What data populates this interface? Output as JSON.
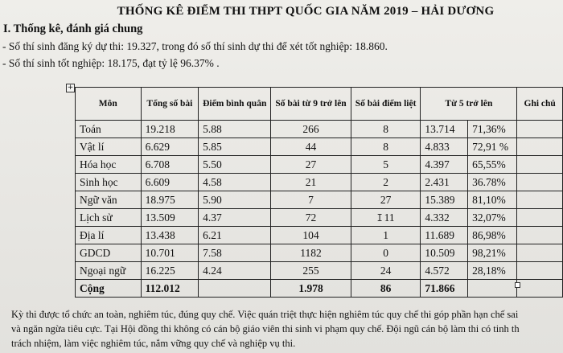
{
  "document": {
    "title": "THỐNG KÊ ĐIỂM THI THPT QUỐC GIA NĂM 2019 – HẢI DƯƠNG",
    "section_heading": "I. Thống kê, đánh giá chung",
    "bullet_1": "- Số thí sinh đăng ký dự thi: 19.327, trong đó số thí sinh dự thi để xét tốt nghiệp: 18.860.",
    "bullet_2": "- Số thí sinh tốt nghiệp: 18.175, đạt tỷ lệ 96.37% .",
    "paragraph_lines": [
      "Kỳ thi được tổ chức an toàn, nghiêm túc, đúng quy chế. Việc quán triệt thực hiện nghiêm túc quy chế thi góp phần hạn chế sai",
      "và ngăn ngừa tiêu cực. Tại Hội đồng thi không có cán bộ giáo viên thi sinh vi phạm quy chế. Đội ngũ cán bộ làm thi có tinh th",
      "trách nhiệm, làm việc nghiêm túc, nắm vững quy chế và nghiệp vụ thi."
    ]
  },
  "table": {
    "headers": {
      "subject": "Môn",
      "total": "Tổng số bài",
      "average": "Điểm bình quân",
      "nine_plus": "Số bài từ 9 trở lên",
      "fail": "Số bài điểm liệt",
      "five_plus": "Từ 5 trở lên",
      "note": "Ghi chú"
    },
    "rows": [
      {
        "subject": "Toán",
        "total": "19.218",
        "average": "5.88",
        "nine_plus": "266",
        "fail": "8",
        "five_count": "13.714",
        "five_pct": "71,36%",
        "note": ""
      },
      {
        "subject": "Vật lí",
        "total": "6.629",
        "average": "5.85",
        "nine_plus": "44",
        "fail": "8",
        "five_count": "4.833",
        "five_pct": "72,91 %",
        "note": ""
      },
      {
        "subject": "Hóa học",
        "total": "6.708",
        "average": "5.50",
        "nine_plus": "27",
        "fail": "5",
        "five_count": "4.397",
        "five_pct": "65,55%",
        "note": ""
      },
      {
        "subject": "Sinh học",
        "total": "6.609",
        "average": "4.58",
        "nine_plus": "21",
        "fail": "2",
        "five_count": "2.431",
        "five_pct": "36.78%",
        "note": ""
      },
      {
        "subject": "Ngữ văn",
        "total": "18.975",
        "average": "5.90",
        "nine_plus": "7",
        "fail": "27",
        "five_count": "15.389",
        "five_pct": "81,10%",
        "note": ""
      },
      {
        "subject": "Lịch sử",
        "total": "13.509",
        "average": "4.37",
        "nine_plus": "72",
        "fail": "11",
        "five_count": "4.332",
        "five_pct": "32,07%",
        "note": ""
      },
      {
        "subject": "Địa lí",
        "total": "13.438",
        "average": "6.21",
        "nine_plus": "104",
        "fail": "1",
        "five_count": "11.689",
        "five_pct": "86,98%",
        "note": ""
      },
      {
        "subject": "GDCD",
        "total": "10.701",
        "average": "7.58",
        "nine_plus": "1182",
        "fail": "0",
        "five_count": "10.509",
        "five_pct": "98,21%",
        "note": ""
      },
      {
        "subject": "Ngoại ngữ",
        "total": "16.225",
        "average": "4.24",
        "nine_plus": "255",
        "fail": "24",
        "five_count": "4.572",
        "five_pct": "28,18%",
        "note": ""
      }
    ],
    "total_row": {
      "subject": "Cộng",
      "total": "112.012",
      "average": "",
      "nine_plus": "1.978",
      "fail": "86",
      "five_count": "71.866",
      "five_pct": "",
      "note": ""
    }
  }
}
